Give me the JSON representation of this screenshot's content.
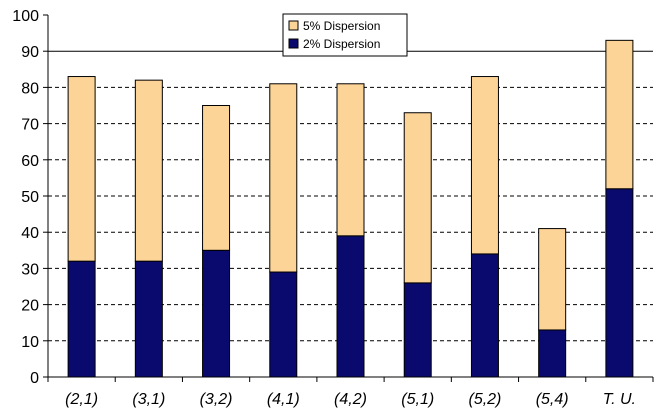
{
  "chart_data": {
    "type": "bar",
    "stacked": true,
    "categories": [
      "(2,1)",
      "(3,1)",
      "(3,2)",
      "(4,1)",
      "(4,2)",
      "(5,1)",
      "(5,2)",
      "(5,4)",
      "T. U."
    ],
    "series": [
      {
        "name": "2% Dispersion",
        "color": "#0a0a6e",
        "values": [
          32,
          32,
          35,
          29,
          39,
          26,
          34,
          13,
          52
        ]
      },
      {
        "name": "5% Dispersion",
        "color": "#fdd497",
        "values": [
          51,
          50,
          40,
          52,
          42,
          47,
          49,
          28,
          41
        ]
      }
    ],
    "ylim": [
      0,
      100
    ],
    "yticks": [
      "0",
      "10",
      "20",
      "30",
      "40",
      "50",
      "60",
      "70",
      "80",
      "90",
      "100"
    ],
    "grid": true,
    "legend": {
      "position": "top-center",
      "items": [
        "5% Dispersion",
        "2% Dispersion"
      ]
    },
    "title": "",
    "xlabel": "",
    "ylabel": ""
  }
}
